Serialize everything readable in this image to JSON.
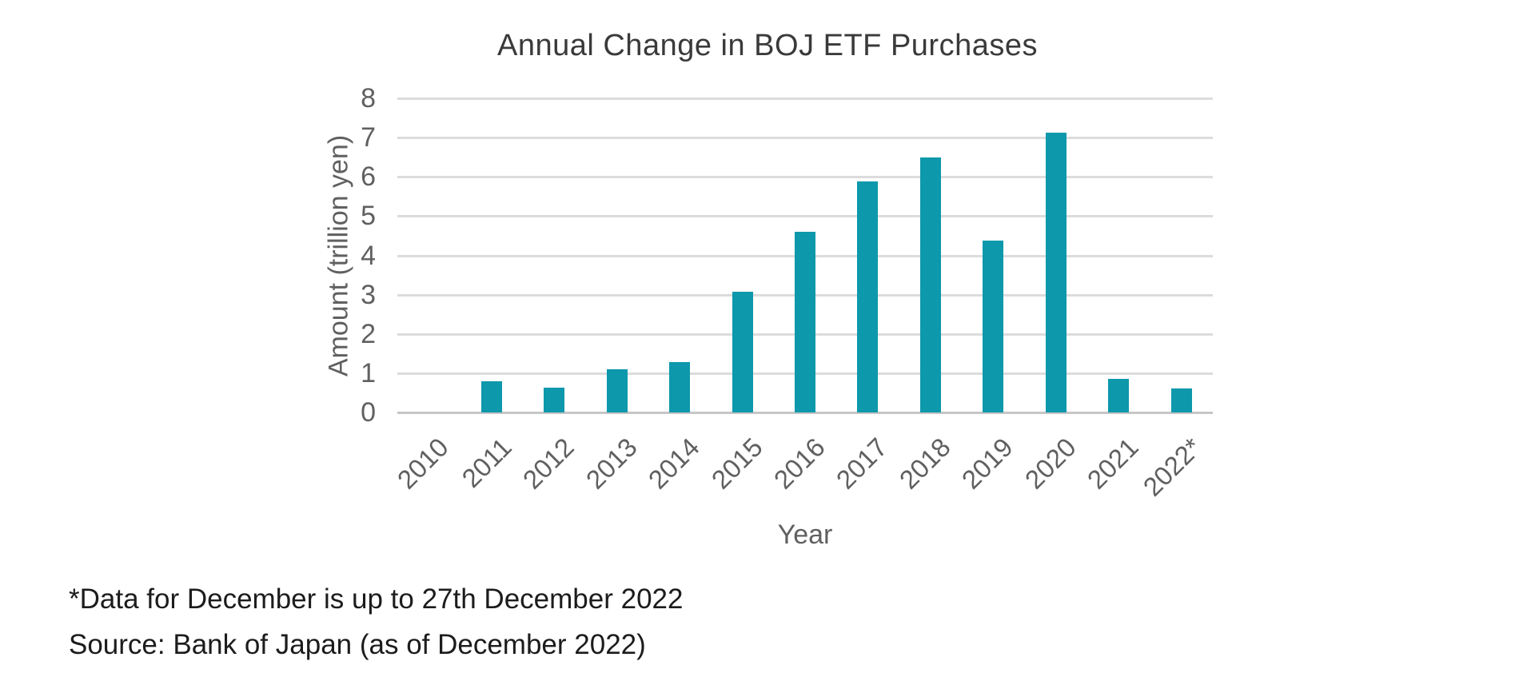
{
  "chart_data": {
    "type": "bar",
    "title": "Annual Change in BOJ ETF Purchases",
    "xlabel": "Year",
    "ylabel": "Amount (trillion yen)",
    "categories": [
      "2010",
      "2011",
      "2012",
      "2013",
      "2014",
      "2015",
      "2016",
      "2017",
      "2018",
      "2019",
      "2020",
      "2021",
      "2022*"
    ],
    "values": [
      0,
      0.8,
      0.63,
      1.1,
      1.28,
      3.07,
      4.6,
      5.88,
      6.5,
      4.38,
      7.12,
      0.86,
      0.62
    ],
    "ylim": [
      0,
      8
    ],
    "yticks": [
      0,
      1,
      2,
      3,
      4,
      5,
      6,
      7,
      8
    ],
    "grid": "horizontal",
    "legend": "none"
  },
  "footnotes": {
    "line1": "*Data for December is up to 27th December 2022",
    "line2": "Source: Bank of Japan (as of December 2022)"
  },
  "colors": {
    "bar": "#0d98ac",
    "gridline": "#dcdcdc",
    "zero_line": "#c6c6c6",
    "axis_text": "#606060",
    "title_text": "#3a3a3a",
    "footnote_text": "#1c1c1c"
  }
}
